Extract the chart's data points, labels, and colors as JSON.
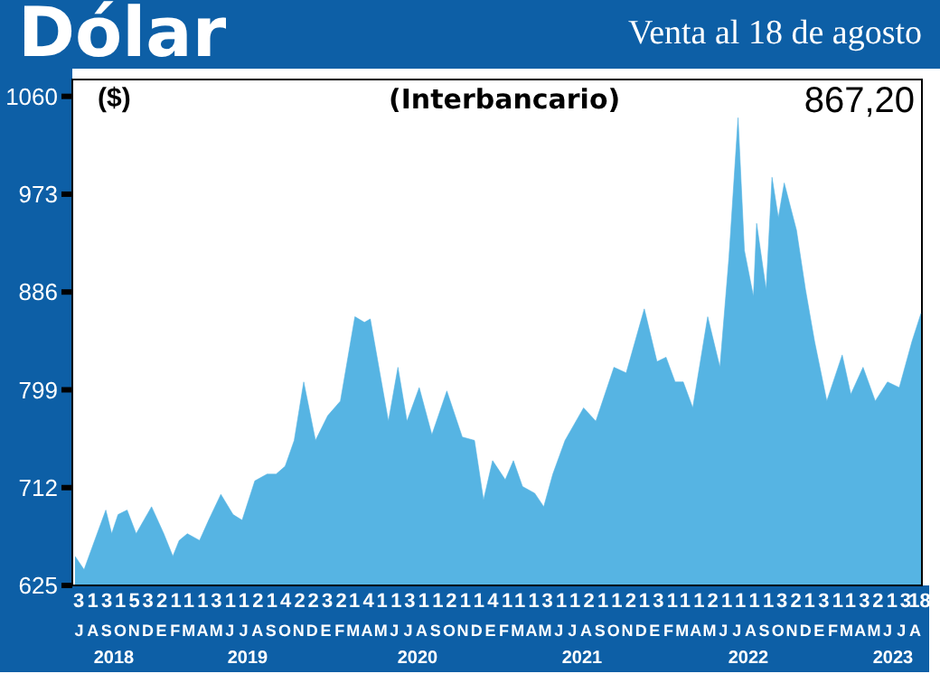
{
  "chart_data": {
    "type": "area",
    "title": "Dólar",
    "subtitle": "Venta al 18 de agosto",
    "ylabel": "($)",
    "annotations": [
      "(Interbancario)",
      "867,20",
      "JASONDEFMAMJJASONDEFMAMJJASONDEFMAMJJASONDEFMAMJJASONDEFMAMJJA",
      "2018",
      "2019",
      "2020",
      "2021",
      "2022",
      "2023"
    ],
    "x": [
      "2018-07-07",
      "2018-07-27",
      "2018-08-23",
      "2018-09-13",
      "2018-09-26",
      "2018-10-10",
      "2018-10-30",
      "2018-11-19",
      "2018-12-23",
      "2019-01-19",
      "2019-02-08",
      "2019-02-22",
      "2019-03-12",
      "2019-04-08",
      "2019-04-28",
      "2019-05-25",
      "2019-06-21",
      "2019-07-11",
      "2019-08-08",
      "2019-09-04",
      "2019-09-24",
      "2019-10-14",
      "2019-11-03",
      "2019-11-24",
      "2019-12-20",
      "2020-01-16",
      "2020-02-13",
      "2020-03-16",
      "2020-04-06",
      "2020-04-19",
      "2020-05-29",
      "2020-06-19",
      "2020-07-09",
      "2020-08-05",
      "2020-09-02",
      "2020-10-05",
      "2020-11-08",
      "2020-12-05",
      "2020-12-25",
      "2021-01-14",
      "2021-02-11",
      "2021-03-01",
      "2021-03-21",
      "2021-04-17",
      "2021-05-07",
      "2021-05-27",
      "2021-06-23",
      "2021-08-03",
      "2021-08-30",
      "2021-10-09",
      "2021-11-05",
      "2021-12-15",
      "2022-01-12",
      "2022-02-01",
      "2022-02-21",
      "2022-03-11",
      "2022-04-01",
      "2022-05-04",
      "2022-05-31",
      "2022-06-20",
      "2022-07-10",
      "2022-07-24",
      "2022-08-13",
      "2022-08-20",
      "2022-09-10",
      "2022-09-23",
      "2022-10-07",
      "2022-10-20",
      "2022-11-16",
      "2022-12-06",
      "2022-12-26",
      "2023-01-22",
      "2023-02-25",
      "2023-03-16",
      "2023-04-12",
      "2023-05-09",
      "2023-06-05",
      "2023-07-01",
      "2023-07-29",
      "2023-08-18"
    ],
    "series": [
      {
        "color": "#56b4e3",
        "values": [
          651,
          639,
          669,
          692,
          671,
          688,
          692,
          671,
          695,
          671,
          651,
          665,
          671,
          665,
          683,
          706,
          688,
          683,
          718,
          724,
          724,
          731,
          754,
          806,
          754,
          776,
          789,
          864,
          859,
          862,
          771,
          819,
          771,
          801,
          759,
          798,
          757,
          754,
          701,
          736,
          719,
          736,
          713,
          707,
          695,
          724,
          754,
          783,
          771,
          819,
          814,
          871,
          824,
          828,
          806,
          806,
          783,
          864,
          819,
          917,
          1041,
          923,
          882,
          947,
          888,
          988,
          952,
          983,
          941,
          888,
          842,
          789,
          830,
          795,
          819,
          789,
          806,
          801,
          842,
          867
        ]
      }
    ],
    "ylim": [
      625,
      1075
    ],
    "yticks": [
      625,
      712,
      799,
      886,
      973,
      1060
    ],
    "xlim": [
      "2018-07-01",
      "2023-08-20"
    ],
    "xticks": [
      {
        "value": "2018-07-15",
        "label": "3"
      },
      {
        "value": "2018-08-15",
        "label": "1"
      },
      {
        "value": "2018-09-15",
        "label": "3"
      },
      {
        "value": "2018-10-15",
        "label": "1"
      },
      {
        "value": "2018-11-15",
        "label": "5"
      },
      {
        "value": "2018-12-15",
        "label": "3"
      },
      {
        "value": "2019-01-15",
        "label": "2"
      },
      {
        "value": "2019-02-15",
        "label": "1"
      },
      {
        "value": "2019-03-15",
        "label": "1"
      },
      {
        "value": "2019-04-15",
        "label": "1"
      },
      {
        "value": "2019-05-15",
        "label": "3"
      },
      {
        "value": "2019-06-15",
        "label": "1"
      },
      {
        "value": "2019-07-15",
        "label": "1"
      },
      {
        "value": "2019-08-15",
        "label": "2"
      },
      {
        "value": "2019-09-15",
        "label": "1"
      },
      {
        "value": "2019-10-15",
        "label": "4"
      },
      {
        "value": "2019-11-15",
        "label": "2"
      },
      {
        "value": "2019-12-15",
        "label": "2"
      },
      {
        "value": "2020-01-15",
        "label": "3"
      },
      {
        "value": "2020-02-15",
        "label": "2"
      },
      {
        "value": "2020-03-15",
        "label": "1"
      },
      {
        "value": "2020-04-15",
        "label": "4"
      },
      {
        "value": "2020-05-15",
        "label": "1"
      },
      {
        "value": "2020-06-15",
        "label": "1"
      },
      {
        "value": "2020-07-15",
        "label": "3"
      },
      {
        "value": "2020-08-15",
        "label": "1"
      },
      {
        "value": "2020-09-15",
        "label": "1"
      },
      {
        "value": "2020-10-15",
        "label": "2"
      },
      {
        "value": "2020-11-15",
        "label": "1"
      },
      {
        "value": "2020-12-15",
        "label": "1"
      },
      {
        "value": "2021-01-15",
        "label": "4"
      },
      {
        "value": "2021-02-15",
        "label": "1"
      },
      {
        "value": "2021-03-15",
        "label": "1"
      },
      {
        "value": "2021-04-15",
        "label": "1"
      },
      {
        "value": "2021-05-15",
        "label": "3"
      },
      {
        "value": "2021-06-15",
        "label": "1"
      },
      {
        "value": "2021-07-15",
        "label": "1"
      },
      {
        "value": "2021-08-15",
        "label": "2"
      },
      {
        "value": "2021-09-15",
        "label": "1"
      },
      {
        "value": "2021-10-15",
        "label": "1"
      },
      {
        "value": "2021-11-15",
        "label": "2"
      },
      {
        "value": "2021-12-15",
        "label": "1"
      },
      {
        "value": "2022-01-15",
        "label": "3"
      },
      {
        "value": "2022-02-15",
        "label": "1"
      },
      {
        "value": "2022-03-15",
        "label": "1"
      },
      {
        "value": "2022-04-15",
        "label": "1"
      },
      {
        "value": "2022-05-15",
        "label": "2"
      },
      {
        "value": "2022-06-15",
        "label": "1"
      },
      {
        "value": "2022-07-15",
        "label": "1"
      },
      {
        "value": "2022-08-15",
        "label": "1"
      },
      {
        "value": "2022-09-15",
        "label": "1"
      },
      {
        "value": "2022-10-15",
        "label": "3"
      },
      {
        "value": "2022-11-15",
        "label": "2"
      },
      {
        "value": "2022-12-15",
        "label": "1"
      },
      {
        "value": "2023-01-15",
        "label": "3"
      },
      {
        "value": "2023-02-15",
        "label": "1"
      },
      {
        "value": "2023-03-15",
        "label": "1"
      },
      {
        "value": "2023-04-15",
        "label": "3"
      },
      {
        "value": "2023-05-15",
        "label": "2"
      },
      {
        "value": "2023-06-15",
        "label": "1"
      },
      {
        "value": "2023-07-15",
        "label": "3"
      },
      {
        "value": "2023-08-15",
        "label": "18"
      }
    ],
    "grid": false,
    "legend": false
  }
}
